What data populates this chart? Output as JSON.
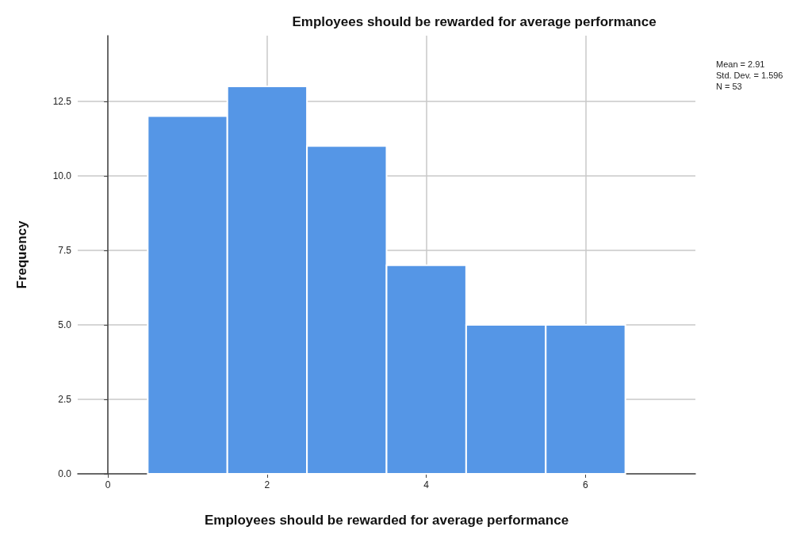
{
  "chart_data": {
    "type": "histogram",
    "title": "Employees should be rewarded for average performance",
    "xlabel": "Employees should be rewarded for average performance",
    "ylabel": "Frequency",
    "bins": [
      0.5,
      1.5,
      2.5,
      3.5,
      4.5,
      5.5,
      6.5
    ],
    "values": [
      12,
      13,
      11,
      7,
      5,
      5
    ],
    "color": "#5596e6",
    "xlim": [
      -0.38,
      7.38
    ],
    "xticks": [
      0,
      2,
      4,
      6
    ],
    "ylim": [
      0,
      14.7
    ],
    "yticks": [
      {
        "value": 0,
        "label": "0.0"
      },
      2.5,
      {
        "value": 5,
        "label": "5.0"
      },
      7.5,
      {
        "value": 10,
        "label": "10.0"
      },
      12.5
    ],
    "grid": true,
    "annotations": [
      "Mean = 2.91",
      "Std. Dev. = 1.596",
      "N = 53"
    ]
  }
}
